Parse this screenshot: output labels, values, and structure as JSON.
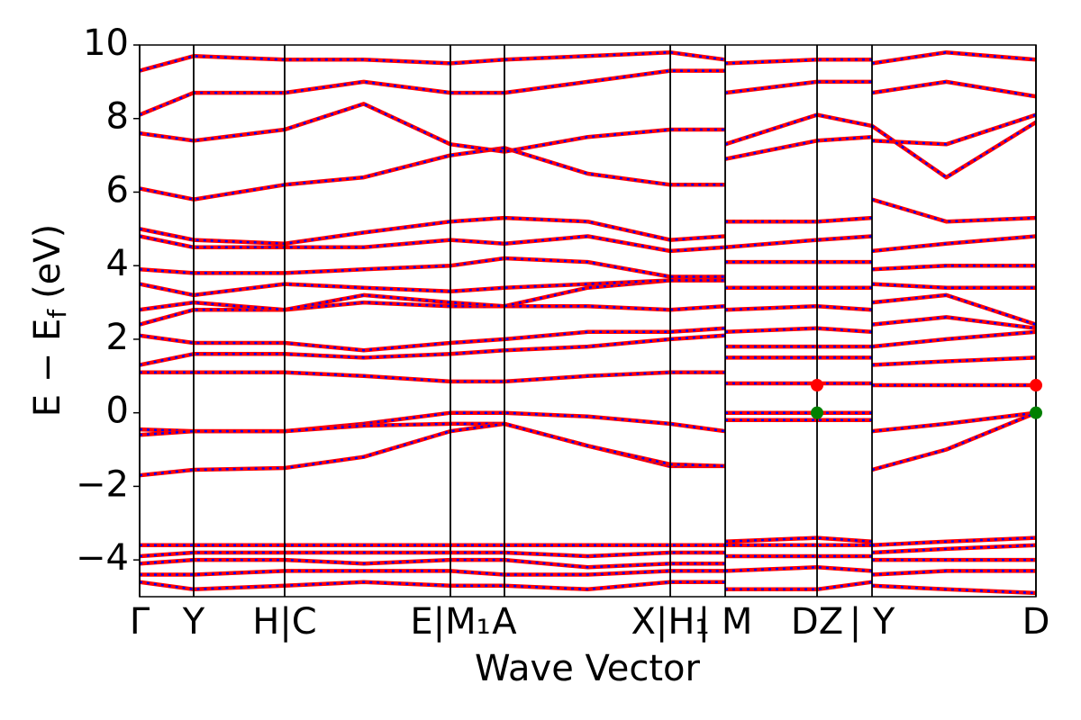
{
  "chart_data": {
    "type": "line",
    "xlabel": "Wave Vector",
    "ylabel": {
      "main": "E − E",
      "sub": "f",
      "unit": "(eV)"
    },
    "line_color": "#ff0000",
    "dash_color": "#0000ff",
    "xlim": [
      0,
      1
    ],
    "xticks": [
      {
        "value": 0,
        "label": "Γ"
      },
      {
        "value": 0.0603,
        "label": "Y"
      },
      {
        "value": 0.1618,
        "label": "H|C"
      },
      {
        "value": 0.3467,
        "label": "E|M₁"
      },
      {
        "value": 0.407,
        "label": "A"
      },
      {
        "value": 0.592,
        "label": "X|H₁"
      },
      {
        "value": 0.6533,
        "label": "| M"
      },
      {
        "value": 0.7558,
        "label": "DZ"
      },
      {
        "value": 0.8171,
        "label": "| Y"
      },
      {
        "value": 1,
        "label": "D"
      }
    ],
    "ylim": [
      -5,
      10
    ],
    "yticks": [
      {
        "value": -4,
        "label": "−4"
      },
      {
        "value": -2,
        "label": "−2"
      },
      0,
      2,
      4,
      6,
      8,
      10
    ],
    "x": [
      0,
      0.0603,
      0.1618,
      0.25,
      0.3467,
      0.407,
      0.5,
      0.592,
      0.6533,
      0.6533,
      0.6533,
      0.7558,
      0.8171,
      0.8171,
      0.8171,
      0.9,
      1
    ],
    "bands": [
      {
        "values": [
          1.1,
          1.1,
          1.1,
          1.0,
          0.85,
          0.85,
          1.0,
          1.1,
          1.1,
          null,
          0.8,
          0.8,
          0.8,
          null,
          0.75,
          0.75,
          0.75
        ]
      },
      {
        "values": [
          -0.45,
          -0.5,
          -0.5,
          -0.3,
          0,
          0,
          -0.1,
          -0.3,
          -0.5,
          null,
          0,
          0,
          0,
          null,
          -0.5,
          -0.3,
          0
        ]
      },
      {
        "values": [
          -0.6,
          -0.5,
          -0.5,
          -0.35,
          -0.3,
          -0.3,
          -0.9,
          -1.45,
          -1.45,
          null,
          -0.2,
          -0.2,
          -0.2,
          null,
          -1.55,
          -1.0,
          0
        ]
      },
      {
        "values": [
          -1.7,
          -1.55,
          -1.5,
          -1.2,
          -0.5,
          -0.3,
          -0.9,
          -1.4,
          -1.45,
          null,
          null,
          null,
          null,
          null,
          null,
          null,
          null
        ]
      },
      {
        "values": [
          1.3,
          1.6,
          1.6,
          1.5,
          1.6,
          1.7,
          1.8,
          2.0,
          2.1,
          null,
          1.5,
          1.5,
          1.5,
          null,
          1.3,
          1.4,
          1.5
        ]
      },
      {
        "values": [
          2.1,
          1.9,
          1.9,
          1.7,
          1.9,
          2.0,
          2.2,
          2.2,
          2.3,
          null,
          1.8,
          1.8,
          1.8,
          null,
          1.8,
          2.0,
          2.2
        ]
      },
      {
        "values": [
          2.4,
          2.8,
          2.8,
          3.0,
          2.9,
          2.9,
          2.9,
          2.8,
          2.9,
          null,
          2.2,
          2.3,
          2.2,
          null,
          2.4,
          2.6,
          2.3
        ]
      },
      {
        "values": [
          2.8,
          3.0,
          2.8,
          3.2,
          3.0,
          2.9,
          3.4,
          3.6,
          3.6,
          null,
          2.8,
          2.9,
          2.8,
          null,
          3.0,
          3.2,
          2.4
        ]
      },
      {
        "values": [
          3.5,
          3.2,
          3.5,
          3.4,
          3.3,
          3.4,
          3.5,
          3.6,
          3.6,
          null,
          3.4,
          3.4,
          3.4,
          null,
          3.5,
          3.4,
          3.4
        ]
      },
      {
        "values": [
          3.9,
          3.8,
          3.8,
          3.9,
          4.0,
          4.2,
          4.1,
          3.7,
          3.7,
          null,
          4.1,
          4.1,
          4.1,
          null,
          3.9,
          4.0,
          4.0
        ]
      },
      {
        "values": [
          4.8,
          4.5,
          4.5,
          4.5,
          4.7,
          4.6,
          4.8,
          4.4,
          4.5,
          null,
          4.5,
          4.7,
          4.8,
          null,
          4.4,
          4.6,
          4.8
        ]
      },
      {
        "values": [
          5.0,
          4.7,
          4.6,
          4.9,
          5.2,
          5.3,
          5.2,
          4.7,
          4.8,
          null,
          5.2,
          5.2,
          5.3,
          null,
          5.8,
          5.2,
          5.3
        ]
      },
      {
        "values": [
          6.1,
          5.8,
          6.2,
          6.4,
          7.0,
          7.2,
          6.5,
          6.2,
          6.2,
          null,
          6.9,
          7.4,
          7.5,
          null,
          7.4,
          7.3,
          8.1
        ]
      },
      {
        "values": [
          7.6,
          7.4,
          7.7,
          8.4,
          7.3,
          7.1,
          7.5,
          7.7,
          7.7,
          null,
          7.3,
          8.1,
          7.8,
          null,
          7.8,
          6.4,
          7.9
        ]
      },
      {
        "values": [
          8.1,
          8.7,
          8.7,
          9.0,
          8.7,
          8.7,
          9.0,
          9.3,
          9.3,
          null,
          8.7,
          9.0,
          9.0,
          null,
          8.7,
          9.0,
          8.6
        ]
      },
      {
        "values": [
          9.3,
          9.7,
          9.6,
          9.6,
          9.5,
          9.6,
          9.7,
          9.8,
          9.6,
          null,
          9.5,
          9.6,
          9.6,
          null,
          9.5,
          9.8,
          9.6
        ]
      },
      {
        "values": [
          -3.6,
          -3.6,
          -3.6,
          -3.6,
          -3.6,
          -3.6,
          -3.6,
          -3.6,
          -3.6,
          null,
          -3.5,
          -3.4,
          -3.5,
          null,
          -3.6,
          -3.5,
          -3.4
        ]
      },
      {
        "values": [
          -3.9,
          -3.8,
          -3.8,
          -3.8,
          -3.8,
          -3.8,
          -3.9,
          -3.8,
          -3.8,
          null,
          -3.6,
          -3.6,
          -3.6,
          null,
          -3.8,
          -3.7,
          -3.6
        ]
      },
      {
        "values": [
          -4.1,
          -4.0,
          -4.0,
          -4.1,
          -4.0,
          -4.0,
          -4.2,
          -4.1,
          -4.1,
          null,
          -3.9,
          -3.9,
          -3.9,
          null,
          -4.0,
          -4.0,
          -4.0
        ]
      },
      {
        "values": [
          -4.4,
          -4.4,
          -4.3,
          -4.3,
          -4.3,
          -4.4,
          -4.4,
          -4.3,
          -4.3,
          null,
          -4.3,
          -4.2,
          -4.3,
          null,
          -4.4,
          -4.3,
          -4.3
        ]
      },
      {
        "values": [
          -4.6,
          -4.8,
          -4.7,
          -4.6,
          -4.7,
          -4.7,
          -4.8,
          -4.6,
          -4.6,
          null,
          -4.8,
          -4.8,
          -4.6,
          null,
          -4.7,
          -4.8,
          -4.9
        ]
      }
    ],
    "markers": [
      {
        "color": "#ff0000",
        "x": [
          0.7558,
          1
        ],
        "values": [
          0.75,
          0.75
        ]
      },
      {
        "color": "#008000",
        "x": [
          0.7558,
          1
        ],
        "values": [
          0,
          0
        ]
      }
    ]
  }
}
